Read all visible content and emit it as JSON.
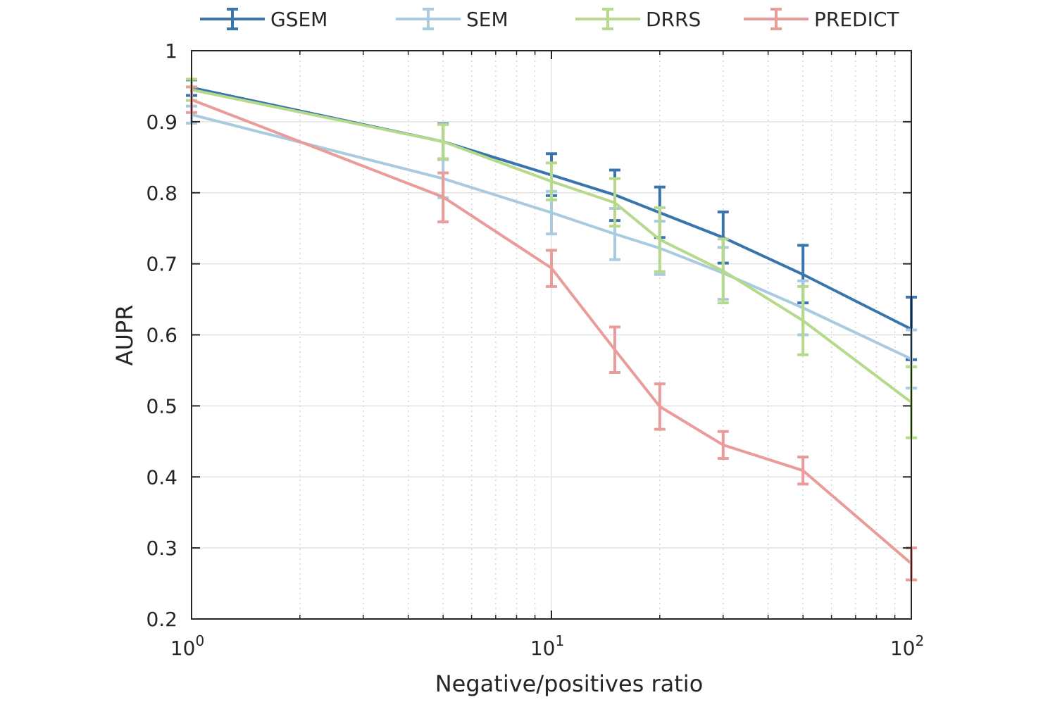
{
  "chart_data": {
    "type": "line",
    "xlabel": "Negative/positives ratio",
    "ylabel": "AUPR",
    "xscale": "log",
    "xlim": [
      1,
      100
    ],
    "ylim": [
      0.2,
      1
    ],
    "grid": true,
    "legend_position": "top, outside plot, horizontal",
    "x_ticks": [
      {
        "base": "10",
        "exp": "0"
      },
      {
        "base": "10",
        "exp": "1"
      },
      {
        "base": "10",
        "exp": "2"
      }
    ],
    "y_ticks": [
      "0.2",
      "0.3",
      "0.4",
      "0.5",
      "0.6",
      "0.7",
      "0.8",
      "0.9",
      "1"
    ],
    "x": [
      1,
      5,
      10,
      15,
      20,
      30,
      50,
      100
    ],
    "series": [
      {
        "name": "GSEM",
        "color": "#3a74ad",
        "values": [
          0.948,
          0.872,
          0.825,
          0.797,
          0.772,
          0.737,
          0.685,
          0.608
        ],
        "err_low": [
          0.937,
          0.847,
          0.796,
          0.761,
          0.737,
          0.701,
          0.645,
          0.565
        ],
        "err_high": [
          0.959,
          0.897,
          0.855,
          0.832,
          0.808,
          0.773,
          0.726,
          0.653
        ]
      },
      {
        "name": "SEM",
        "color": "#a9cbe0",
        "values": [
          0.91,
          0.82,
          0.772,
          0.742,
          0.722,
          0.687,
          0.638,
          0.566
        ],
        "err_low": [
          0.898,
          0.793,
          0.742,
          0.706,
          0.685,
          0.65,
          0.6,
          0.525
        ],
        "err_high": [
          0.922,
          0.847,
          0.802,
          0.778,
          0.76,
          0.723,
          0.676,
          0.607
        ]
      },
      {
        "name": "DRRS",
        "color": "#b7d98c",
        "values": [
          0.945,
          0.872,
          0.816,
          0.786,
          0.734,
          0.69,
          0.62,
          0.505
        ],
        "err_low": [
          0.93,
          0.848,
          0.79,
          0.753,
          0.689,
          0.645,
          0.572,
          0.455
        ],
        "err_high": [
          0.96,
          0.896,
          0.842,
          0.82,
          0.779,
          0.735,
          0.668,
          0.555
        ]
      },
      {
        "name": "PREDICT",
        "color": "#e99c9a",
        "values": [
          0.931,
          0.794,
          0.694,
          0.579,
          0.499,
          0.445,
          0.409,
          0.278
        ],
        "err_low": [
          0.913,
          0.759,
          0.668,
          0.547,
          0.467,
          0.426,
          0.39,
          0.255
        ],
        "err_high": [
          0.949,
          0.828,
          0.719,
          0.611,
          0.531,
          0.464,
          0.428,
          0.3
        ]
      }
    ]
  }
}
